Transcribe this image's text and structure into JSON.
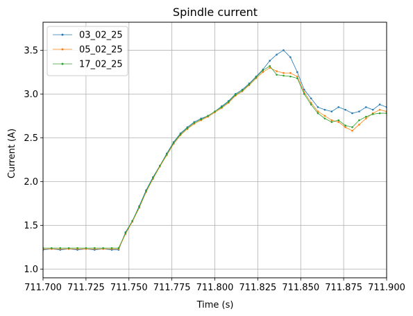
{
  "chart_data": {
    "type": "line",
    "title": "Spindle current",
    "xlabel": "Time (s)",
    "ylabel": "Current (A)",
    "xlim": [
      711.7,
      711.9
    ],
    "ylim": [
      0.9,
      3.82
    ],
    "xticks": [
      711.7,
      711.725,
      711.75,
      711.775,
      711.8,
      711.825,
      711.85,
      711.875,
      711.9
    ],
    "xtick_labels": [
      "711.700",
      "711.725",
      "711.750",
      "711.775",
      "711.800",
      "711.825",
      "711.850",
      "711.875",
      "711.900"
    ],
    "yticks": [
      1.0,
      1.5,
      2.0,
      2.5,
      3.0,
      3.5
    ],
    "ytick_labels": [
      "1.0",
      "1.5",
      "2.0",
      "2.5",
      "3.0",
      "3.5"
    ],
    "grid": true,
    "legend_position": "top-left",
    "series": [
      {
        "name": "03_02_25",
        "color": "#1f77b4",
        "x": [
          711.7,
          711.705,
          711.71,
          711.715,
          711.72,
          711.725,
          711.73,
          711.735,
          711.74,
          711.744,
          711.748,
          711.752,
          711.756,
          711.76,
          711.764,
          711.768,
          711.772,
          711.776,
          711.78,
          711.784,
          711.788,
          711.792,
          711.796,
          711.8,
          711.804,
          711.808,
          711.812,
          711.816,
          711.82,
          711.824,
          711.828,
          711.832,
          711.836,
          711.84,
          711.844,
          711.848,
          711.852,
          711.856,
          711.86,
          711.864,
          711.868,
          711.872,
          711.876,
          711.88,
          711.884,
          711.888,
          711.892,
          711.896,
          711.9
        ],
        "y": [
          1.22,
          1.23,
          1.22,
          1.23,
          1.22,
          1.23,
          1.22,
          1.23,
          1.22,
          1.22,
          1.42,
          1.55,
          1.72,
          1.9,
          2.05,
          2.18,
          2.32,
          2.45,
          2.55,
          2.62,
          2.68,
          2.72,
          2.75,
          2.8,
          2.86,
          2.92,
          3.0,
          3.05,
          3.12,
          3.2,
          3.28,
          3.38,
          3.45,
          3.5,
          3.42,
          3.25,
          3.05,
          2.95,
          2.85,
          2.82,
          2.8,
          2.85,
          2.82,
          2.78,
          2.8,
          2.85,
          2.82,
          2.88,
          2.85
        ]
      },
      {
        "name": "05_02_25",
        "color": "#ff7f0e",
        "x": [
          711.7,
          711.705,
          711.71,
          711.715,
          711.72,
          711.725,
          711.73,
          711.735,
          711.74,
          711.744,
          711.748,
          711.752,
          711.756,
          711.76,
          711.764,
          711.768,
          711.772,
          711.776,
          711.78,
          711.784,
          711.788,
          711.792,
          711.796,
          711.8,
          711.804,
          711.808,
          711.812,
          711.816,
          711.82,
          711.824,
          711.828,
          711.832,
          711.836,
          711.84,
          711.844,
          711.848,
          711.852,
          711.856,
          711.86,
          711.864,
          711.868,
          711.872,
          711.876,
          711.88,
          711.884,
          711.888,
          711.892,
          711.896,
          711.9
        ],
        "y": [
          1.23,
          1.23,
          1.23,
          1.23,
          1.23,
          1.23,
          1.23,
          1.23,
          1.23,
          1.23,
          1.4,
          1.54,
          1.7,
          1.88,
          2.03,
          2.17,
          2.3,
          2.43,
          2.53,
          2.6,
          2.66,
          2.7,
          2.74,
          2.79,
          2.84,
          2.9,
          2.98,
          3.03,
          3.1,
          3.18,
          3.25,
          3.3,
          3.26,
          3.24,
          3.24,
          3.2,
          3.02,
          2.9,
          2.8,
          2.75,
          2.7,
          2.68,
          2.62,
          2.58,
          2.65,
          2.72,
          2.78,
          2.82,
          2.8
        ]
      },
      {
        "name": "17_02_25",
        "color": "#2ca02c",
        "x": [
          711.7,
          711.705,
          711.71,
          711.715,
          711.72,
          711.725,
          711.73,
          711.735,
          711.74,
          711.744,
          711.748,
          711.752,
          711.756,
          711.76,
          711.764,
          711.768,
          711.772,
          711.776,
          711.78,
          711.784,
          711.788,
          711.792,
          711.796,
          711.8,
          711.804,
          711.808,
          711.812,
          711.816,
          711.82,
          711.824,
          711.828,
          711.832,
          711.836,
          711.84,
          711.844,
          711.848,
          711.852,
          711.856,
          711.86,
          711.864,
          711.868,
          711.872,
          711.876,
          711.88,
          711.884,
          711.888,
          711.892,
          711.896,
          711.9
        ],
        "y": [
          1.24,
          1.24,
          1.24,
          1.24,
          1.24,
          1.24,
          1.24,
          1.24,
          1.24,
          1.24,
          1.41,
          1.55,
          1.71,
          1.89,
          2.04,
          2.18,
          2.31,
          2.44,
          2.54,
          2.61,
          2.67,
          2.71,
          2.75,
          2.8,
          2.85,
          2.91,
          2.99,
          3.04,
          3.11,
          3.19,
          3.27,
          3.32,
          3.22,
          3.21,
          3.2,
          3.18,
          3.0,
          2.88,
          2.78,
          2.72,
          2.68,
          2.7,
          2.64,
          2.62,
          2.7,
          2.74,
          2.77,
          2.78,
          2.78
        ]
      }
    ]
  }
}
